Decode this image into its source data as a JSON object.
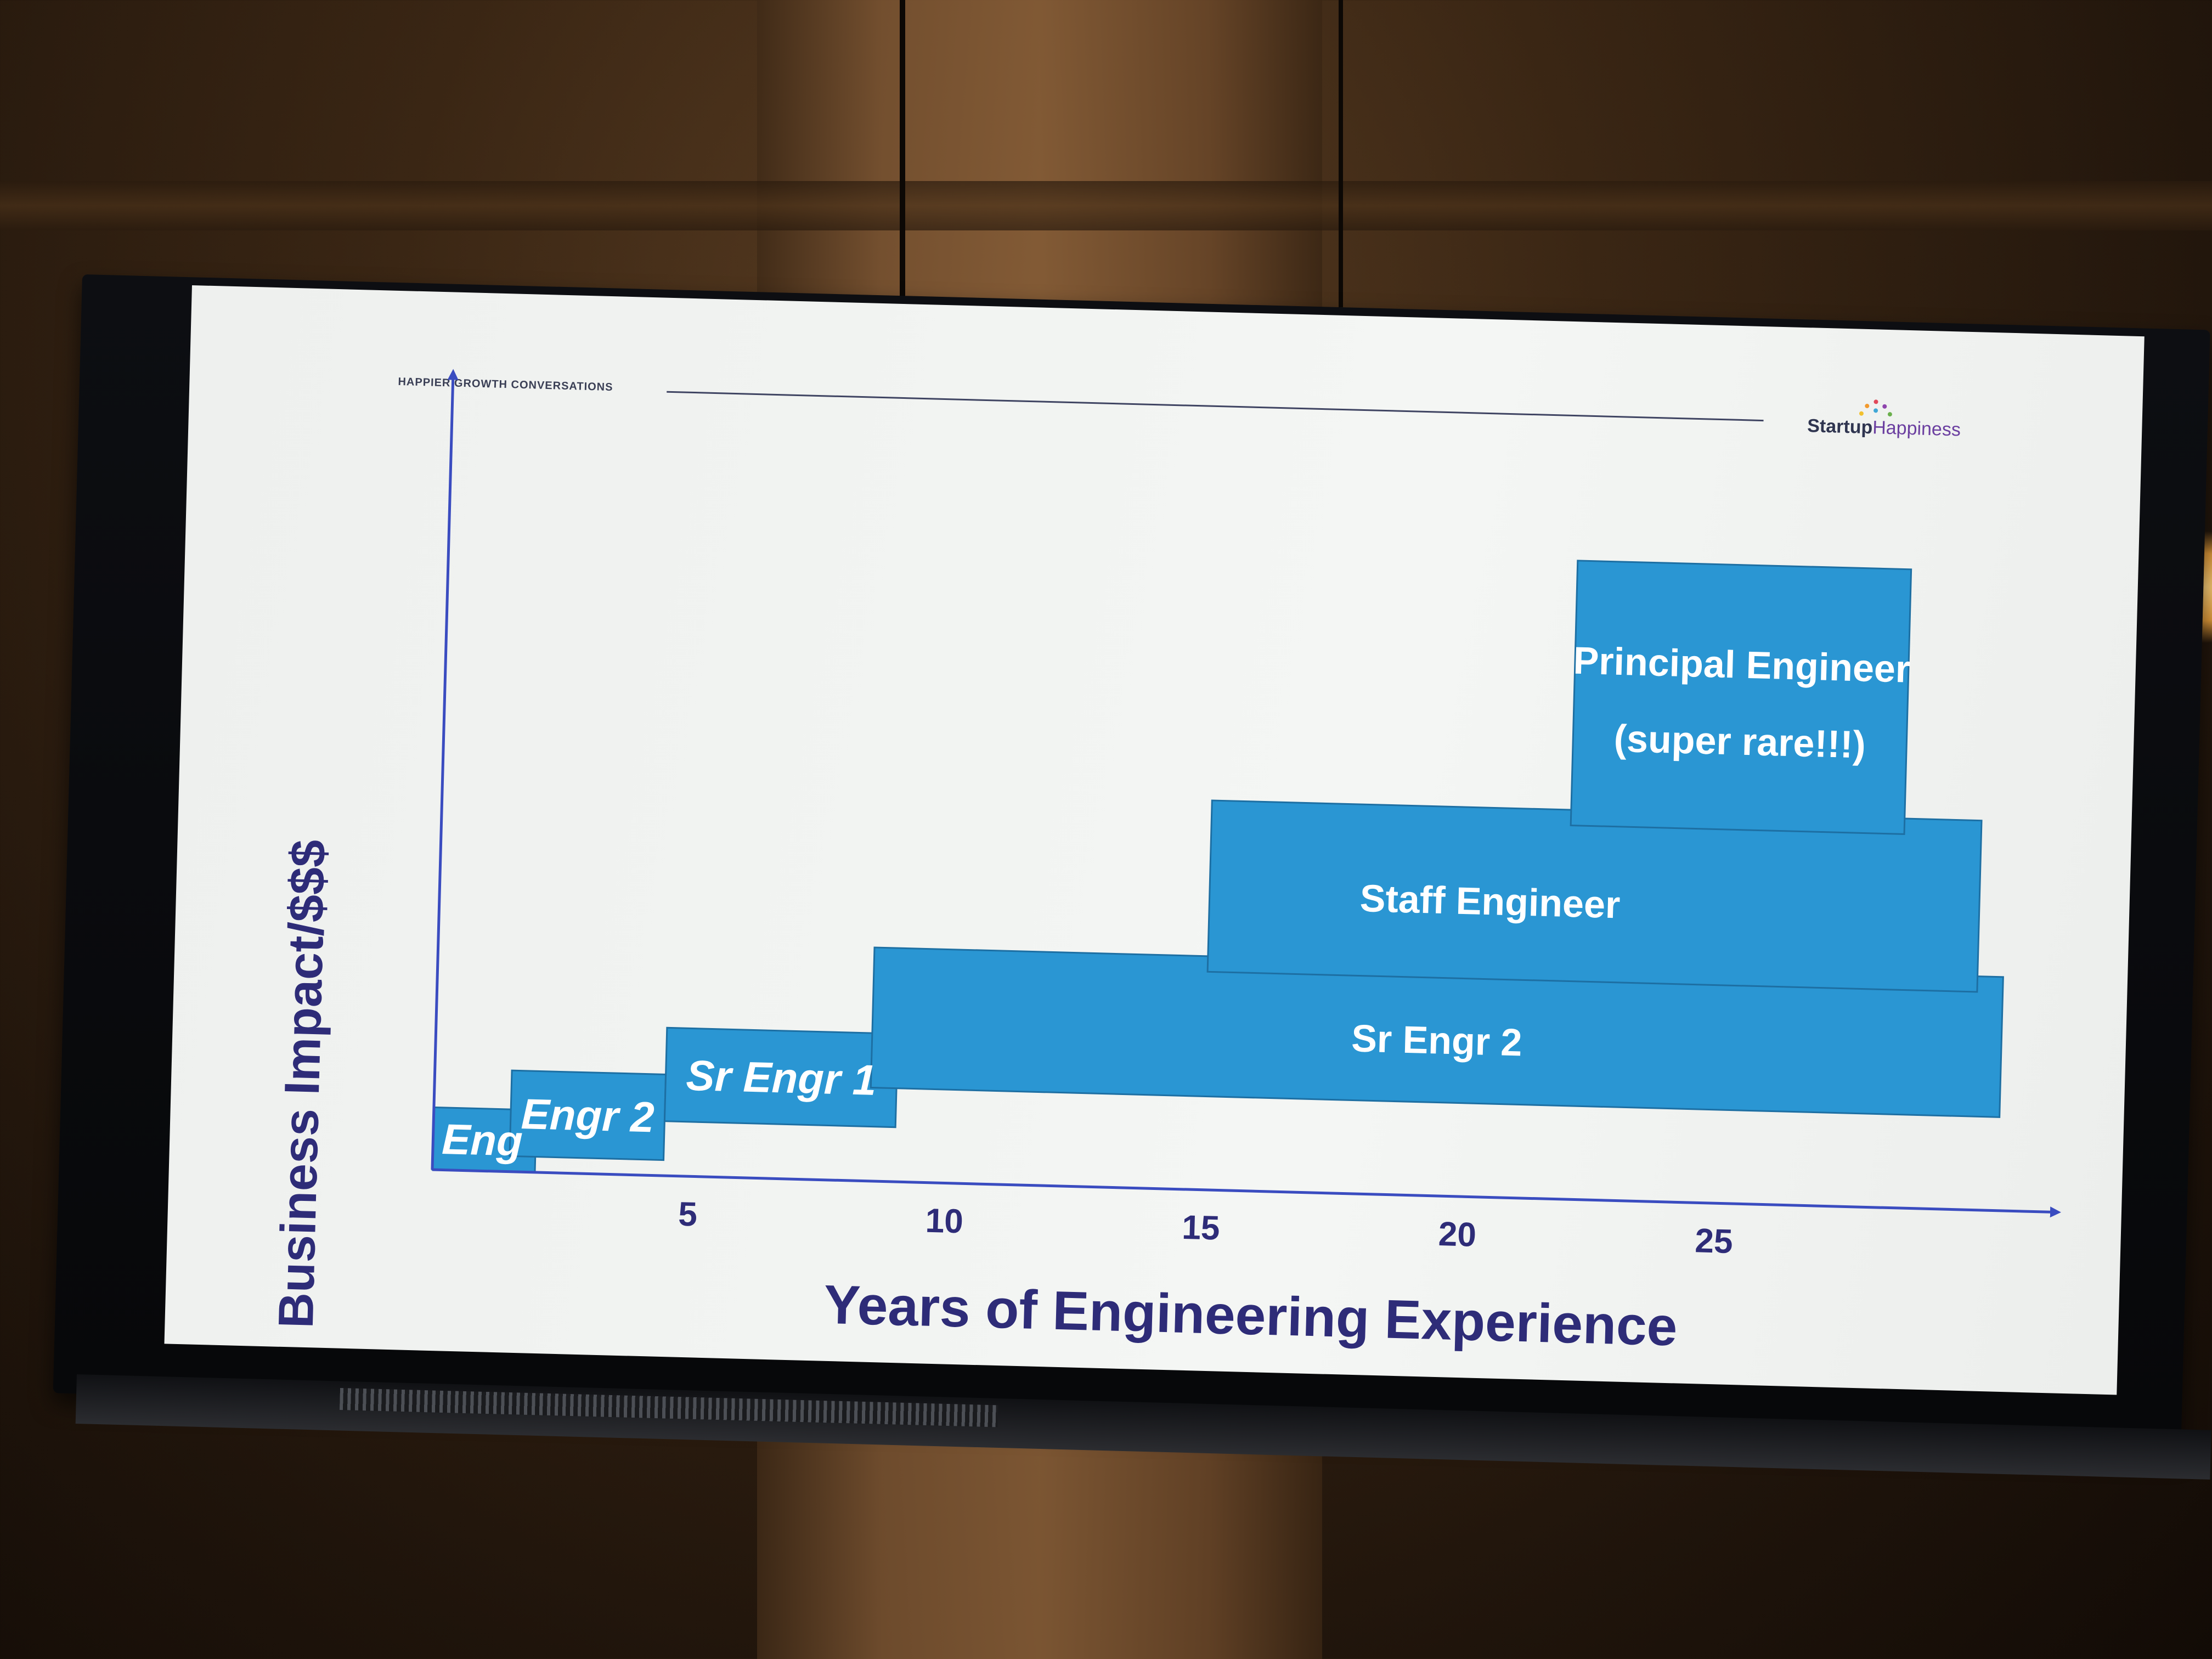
{
  "header": {
    "label": "HAPPIER GROWTH CONVERSATIONS",
    "logo_part1": "Startup",
    "logo_part2": "Happiness"
  },
  "colors": {
    "box_fill": "#2a96d3",
    "box_stroke": "#1d6fa3",
    "axis": "#3a4cc0",
    "title": "#2e2c78",
    "box_label": "#ffffff"
  },
  "chart_data": {
    "type": "bar",
    "xlabel": "Years of Engineering Experience",
    "ylabel": "Business Impact/$$$",
    "xlim": [
      0,
      31
    ],
    "ylim": [
      0,
      10
    ],
    "x_ticks": [
      "5",
      "10",
      "15",
      "20",
      "25"
    ],
    "x_tick_values": [
      5,
      10,
      15,
      20,
      25
    ],
    "levels": [
      {
        "label": "Eng",
        "x_start": 0,
        "x_end": 2,
        "y_low": 0,
        "y_high": 0.8
      },
      {
        "label": "Engr 2",
        "x_start": 1.5,
        "x_end": 4.5,
        "y_low": 0.2,
        "y_high": 1.3
      },
      {
        "label": "Sr Engr 1",
        "x_start": 4.5,
        "x_end": 9,
        "y_low": 0.7,
        "y_high": 1.9
      },
      {
        "label": "Sr Engr 2",
        "x_start": 8.5,
        "x_end": 30.5,
        "y_low": 1.2,
        "y_high": 3.0
      },
      {
        "label": "Staff Engineer",
        "x_start": 15,
        "x_end": 30,
        "y_low": 2.8,
        "y_high": 5.0
      },
      {
        "label": "Principal Engineer",
        "label_line2": "(super rare!!!)",
        "x_start": 22,
        "x_end": 28.5,
        "y_low": 4.8,
        "y_high": 8.2
      }
    ]
  }
}
